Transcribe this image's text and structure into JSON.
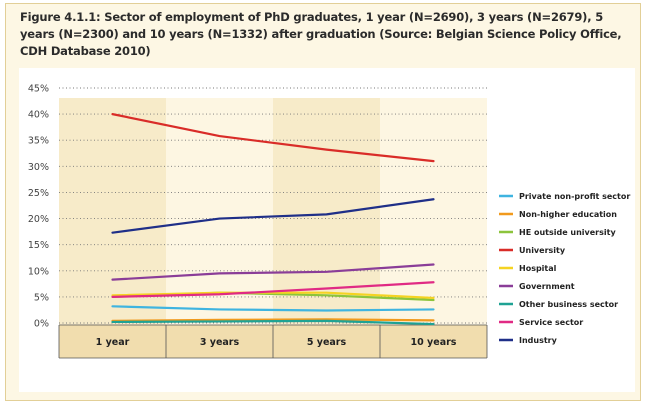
{
  "figure": {
    "title": "Figure 4.1.1: Sector of employment of PhD graduates, 1 year (N=2690), 3 years (N=2679), 5 years (N=2300) and 10 years (N=1332) after graduation (Source: Belgian Science Policy Office, CDH Database 2010)"
  },
  "chart_data": {
    "type": "line",
    "title": "Figure 4.1.1: Sector of employment of PhD graduates, 1 year (N=2690), 3 years (N=2679), 5 years (N=2300) and 10 years (N=1332) after graduation (Source: Belgian Science Policy Office, CDH Database 2010)",
    "categories": [
      "1 year",
      "3 years",
      "5 years",
      "10 years"
    ],
    "yticks": [
      "45%",
      "40%",
      "35%",
      "30%",
      "25%",
      "20%",
      "15%",
      "10%",
      "5%",
      "0%"
    ],
    "ylim": [
      0,
      45
    ],
    "grid": "dotted horizontal",
    "legend_position": "right",
    "series": [
      {
        "name": "Private non-profit sector",
        "color": "#3fb4e0",
        "values": [
          3.2,
          2.6,
          2.4,
          2.6
        ]
      },
      {
        "name": "Non-higher education",
        "color": "#f19a1d",
        "values": [
          0.4,
          0.6,
          0.7,
          0.5
        ]
      },
      {
        "name": "HE outside university",
        "color": "#8cc43c",
        "values": [
          5.0,
          5.8,
          5.3,
          4.4
        ]
      },
      {
        "name": "University",
        "color": "#d92c28",
        "values": [
          40.0,
          35.8,
          33.2,
          31.0
        ]
      },
      {
        "name": "Hospital",
        "color": "#f5d322",
        "values": [
          5.3,
          5.8,
          5.8,
          4.8
        ]
      },
      {
        "name": "Government",
        "color": "#8a3d98",
        "values": [
          8.3,
          9.5,
          9.8,
          11.2
        ]
      },
      {
        "name": "Other business sector",
        "color": "#1fa294",
        "values": [
          0.2,
          0.3,
          0.4,
          -0.2
        ]
      },
      {
        "name": "Service sector",
        "color": "#e02a84",
        "values": [
          5.0,
          5.5,
          6.6,
          7.8
        ]
      },
      {
        "name": "Industry",
        "color": "#1f2f88",
        "values": [
          17.3,
          20.0,
          20.8,
          23.7
        ]
      }
    ]
  }
}
